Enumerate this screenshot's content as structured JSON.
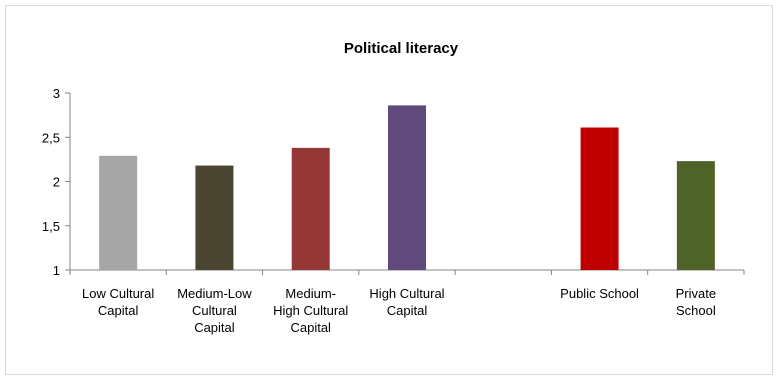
{
  "chart_data": {
    "type": "bar",
    "title": "Political literacy",
    "xlabel": "",
    "ylabel": "",
    "ylim": [
      1,
      3
    ],
    "yticks": [
      "1",
      "1,5",
      "2",
      "2,5",
      "3"
    ],
    "ytick_values": [
      1,
      1.5,
      2,
      2.5,
      3
    ],
    "grid": false,
    "legend": "none",
    "categories": [
      {
        "label": [
          "Low Cultural",
          "Capital"
        ],
        "value": 2.29,
        "color": "#a6a6a6"
      },
      {
        "label": [
          "Medium-Low",
          "Cultural",
          "Capital"
        ],
        "value": 2.18,
        "color": "#4a4530"
      },
      {
        "label": [
          "Medium-",
          "High Cultural",
          "Capital"
        ],
        "value": 2.38,
        "color": "#953735"
      },
      {
        "label": [
          "High Cultural",
          "Capital"
        ],
        "value": 2.86,
        "color": "#604a7b"
      },
      {
        "label": [],
        "value": null,
        "color": ""
      },
      {
        "label": [
          "Public School"
        ],
        "value": 2.61,
        "color": "#c00000"
      },
      {
        "label": [
          "Private",
          "School"
        ],
        "value": 2.23,
        "color": "#4f6228"
      }
    ]
  }
}
